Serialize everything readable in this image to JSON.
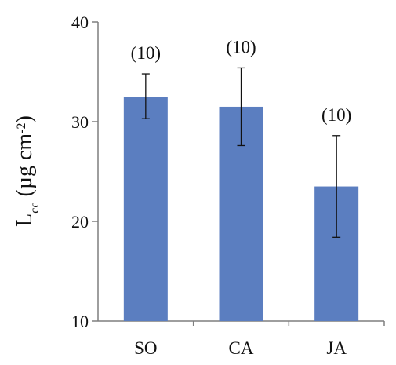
{
  "chart_data": {
    "type": "bar",
    "categories": [
      "SO",
      "CA",
      "JA"
    ],
    "values": [
      32.5,
      31.5,
      23.5
    ],
    "error_low": [
      30.3,
      27.6,
      18.4
    ],
    "error_high": [
      34.8,
      35.4,
      28.6
    ],
    "data_labels": [
      "(10)",
      "(10)",
      "(10)"
    ],
    "ylim": [
      10,
      40
    ],
    "yticks": [
      10,
      20,
      30,
      40
    ],
    "ytick_labels": [
      "10",
      "20",
      "30",
      "40"
    ],
    "ylabel": {
      "main": "L",
      "subscript": "cc",
      "unit_open": " (µg cm",
      "superscript": "-2",
      "unit_close": ")"
    },
    "xlabel": "",
    "title": "",
    "grid": false,
    "legend": "none",
    "colors": {
      "bar": "#5B7EC0",
      "axis": "#7f7f7f",
      "error_bar": "#111111",
      "text": "#111111"
    }
  }
}
